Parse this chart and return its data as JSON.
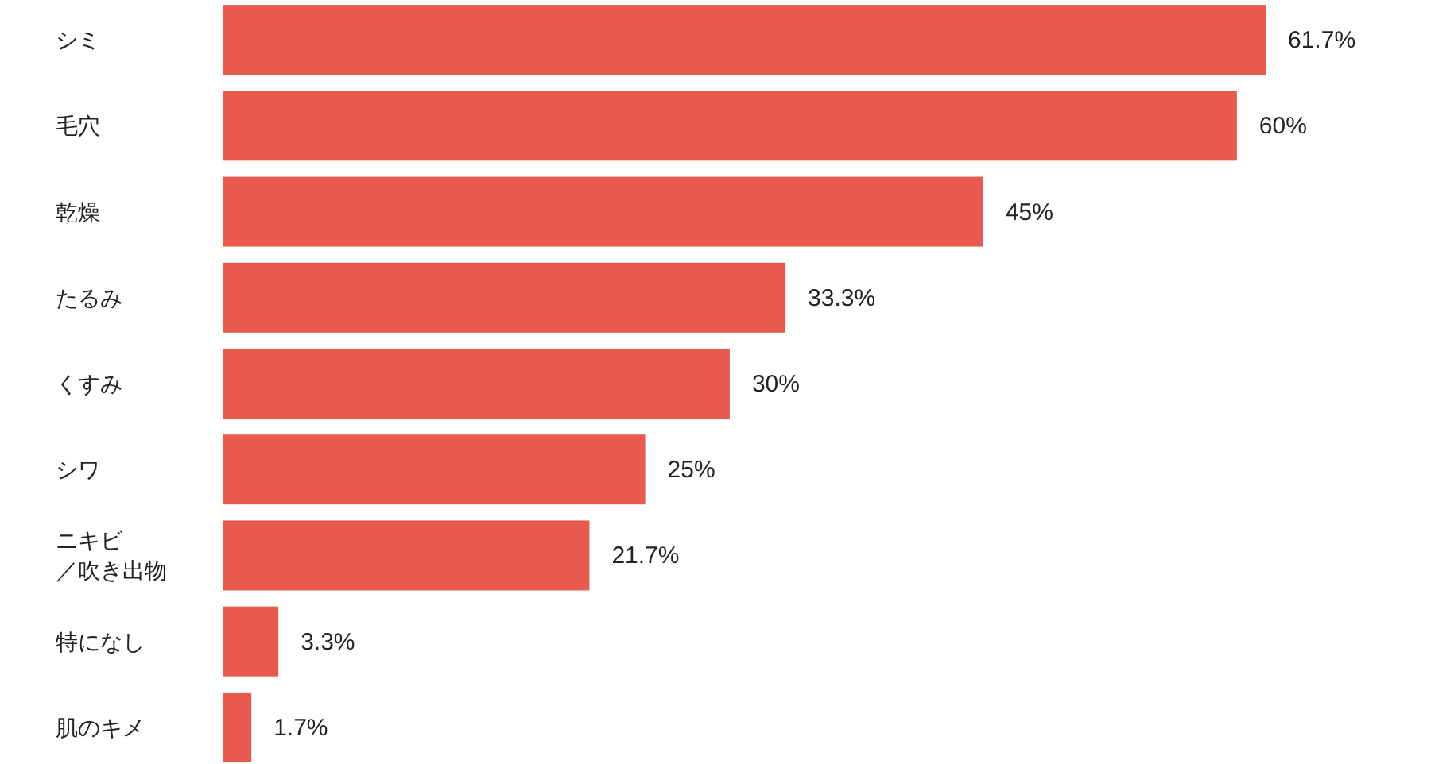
{
  "chart_data": {
    "type": "bar",
    "orientation": "horizontal",
    "categories": [
      "シミ",
      "毛穴",
      "乾燥",
      "たるみ",
      "くすみ",
      "シワ",
      "ニキビ／吹き出物",
      "特になし",
      "肌のキメ"
    ],
    "values": [
      61.7,
      60,
      45,
      33.3,
      30,
      25,
      21.7,
      3.3,
      1.7
    ],
    "value_labels": [
      "61.7%",
      "60%",
      "45%",
      "33.3%",
      "30%",
      "25%",
      "21.7%",
      "3.3%",
      "1.7%"
    ],
    "color": "#e85a4e",
    "tick_labels": "y"
  }
}
